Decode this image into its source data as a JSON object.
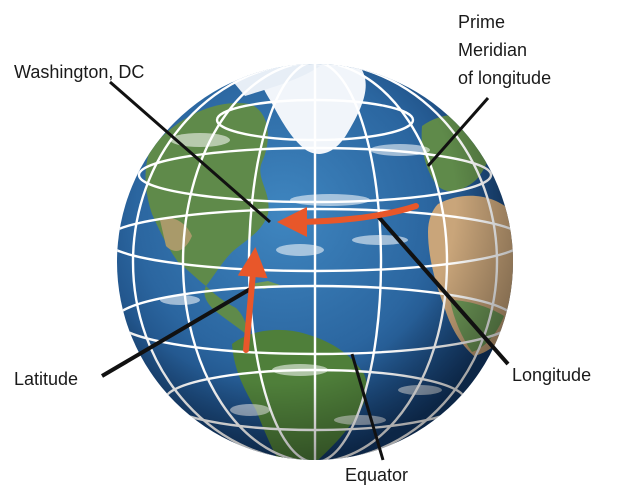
{
  "labels": {
    "washington": "Washington, DC",
    "prime_line1": "Prime",
    "prime_line2": "Meridian",
    "prime_line3": "of longitude",
    "latitude": "Latitude",
    "longitude": "Longitude",
    "equator": "Equator"
  },
  "colors": {
    "ocean": "#2f6fa8",
    "ocean_deep": "#173f74",
    "land_green": "#5f8a4a",
    "land_desert": "#c9a57a",
    "ice": "#f4f7fb",
    "grid": "#ffffff",
    "arrow": "#e8572a",
    "leader": "#111111"
  }
}
